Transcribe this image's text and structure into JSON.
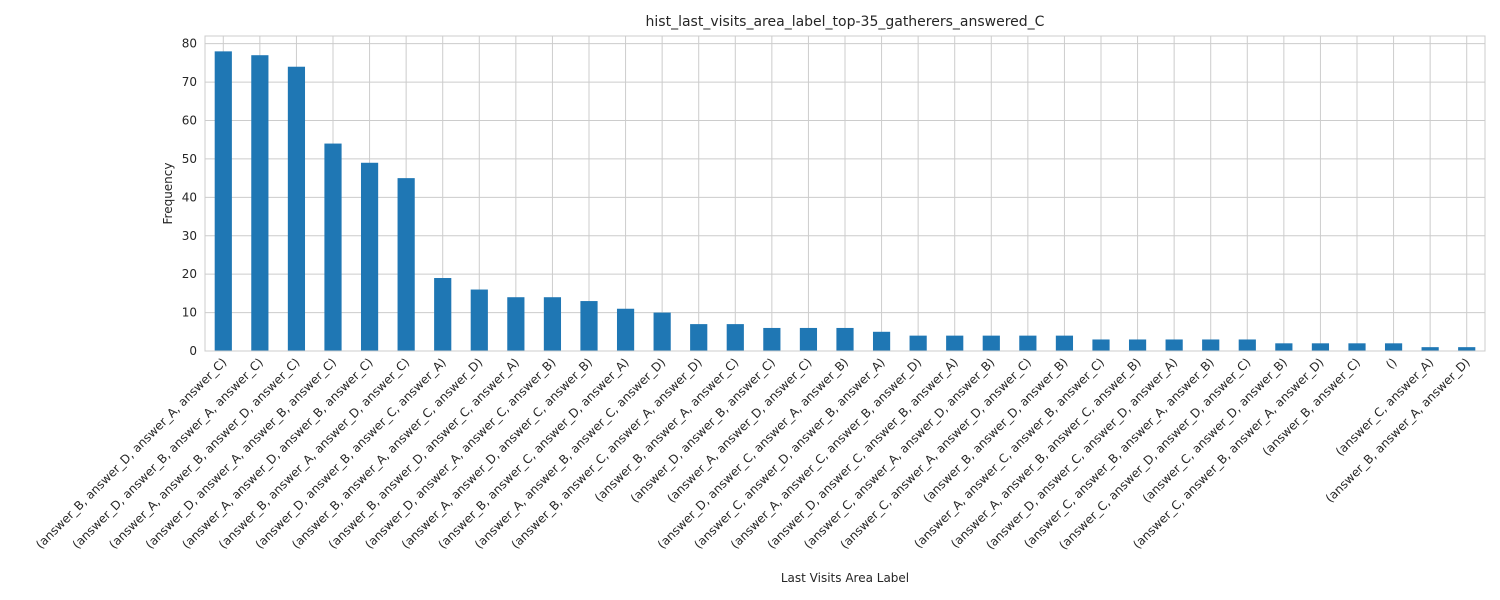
{
  "chart_data": {
    "type": "bar",
    "title": "hist_last_visits_area_label_top-35_gatherers_answered_C",
    "xlabel": "Last Visits Area Label",
    "ylabel": "Frequency",
    "ylim": [
      0,
      82
    ],
    "yticks": [
      0,
      10,
      20,
      30,
      40,
      50,
      60,
      70,
      80
    ],
    "grid": true,
    "bar_color": "#1f77b4",
    "categories": [
      "(answer_B, answer_D, answer_A, answer_C)",
      "(answer_D, answer_B, answer_A, answer_C)",
      "(answer_A, answer_B, answer_D, answer_C)",
      "(answer_D, answer_A, answer_B, answer_C)",
      "(answer_A, answer_D, answer_B, answer_C)",
      "(answer_B, answer_A, answer_D, answer_C)",
      "(answer_D, answer_B, answer_C, answer_A)",
      "(answer_B, answer_A, answer_C, answer_D)",
      "(answer_B, answer_D, answer_C, answer_A)",
      "(answer_D, answer_A, answer_C, answer_B)",
      "(answer_A, answer_D, answer_C, answer_B)",
      "(answer_B, answer_C, answer_D, answer_A)",
      "(answer_A, answer_B, answer_C, answer_D)",
      "(answer_B, answer_C, answer_A, answer_D)",
      "(answer_B, answer_A, answer_C)",
      "(answer_D, answer_B, answer_C)",
      "(answer_A, answer_D, answer_C)",
      "(answer_D, answer_C, answer_A, answer_B)",
      "(answer_C, answer_D, answer_B, answer_A)",
      "(answer_A, answer_C, answer_B, answer_D)",
      "(answer_D, answer_C, answer_B, answer_A)",
      "(answer_C, answer_A, answer_D, answer_B)",
      "(answer_C, answer_A, answer_D, answer_C)",
      "(answer_B, answer_D, answer_B)",
      "(answer_A, answer_C, answer_B, answer_C)",
      "(answer_A, answer_B, answer_C, answer_B)",
      "(answer_D, answer_C, answer_D, answer_A)",
      "(answer_C, answer_B, answer_A, answer_B)",
      "(answer_C, answer_D, answer_D, answer_C)",
      "(answer_C, answer_D, answer_B)",
      "(answer_C, answer_B, answer_A, answer_D)",
      "(answer_B, answer_C)",
      "()",
      "(answer_C, answer_A)",
      "(answer_B, answer_A, answer_D)"
    ],
    "values": [
      78,
      77,
      74,
      54,
      49,
      45,
      19,
      16,
      14,
      14,
      13,
      11,
      10,
      7,
      7,
      6,
      6,
      6,
      5,
      4,
      4,
      4,
      4,
      4,
      3,
      3,
      3,
      3,
      3,
      2,
      2,
      2,
      2,
      1,
      1
    ]
  }
}
